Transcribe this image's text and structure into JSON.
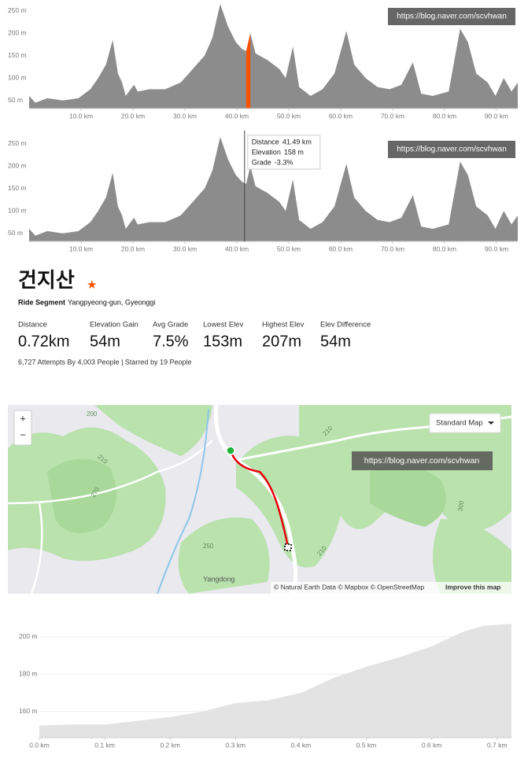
{
  "chart_data": [
    {
      "type": "area",
      "color": "#8c8c8c",
      "x": [
        0,
        1.2,
        3.5,
        6.5,
        9.5,
        11.8,
        13.3,
        14.8,
        16.1,
        17.1,
        17.9,
        18.6,
        20.2,
        20.9,
        23.2,
        26.2,
        29.2,
        31.5,
        33.8,
        35.3,
        36.8,
        38.3,
        39.8,
        41.0,
        41.8,
        42.6,
        43.6,
        45.9,
        48.2,
        49.4,
        50.8,
        52.0,
        54.2,
        56.5,
        58.8,
        61.1,
        62.6,
        64.8,
        67.1,
        69.4,
        71.7,
        73.9,
        75.5,
        77.7,
        80.8,
        83.0,
        84.5,
        86.1,
        88.3,
        89.8,
        91.4,
        92.9,
        94.1
      ],
      "values": [
        60,
        45,
        55,
        50,
        55,
        75,
        100,
        130,
        185,
        110,
        90,
        60,
        85,
        70,
        75,
        75,
        90,
        120,
        150,
        190,
        265,
        215,
        180,
        165,
        160,
        200,
        155,
        140,
        120,
        100,
        170,
        80,
        60,
        75,
        110,
        205,
        130,
        100,
        80,
        75,
        85,
        135,
        65,
        60,
        70,
        210,
        180,
        110,
        90,
        60,
        100,
        70,
        90
      ],
      "xlim": [
        0,
        94.1
      ],
      "ylim": [
        32,
        274
      ],
      "xticks": [
        {
          "value": 10,
          "label": "10.0 km"
        },
        {
          "value": 20,
          "label": "20.0 km"
        },
        {
          "value": 30,
          "label": "30.0 km"
        },
        {
          "value": 40,
          "label": "40.0 km"
        },
        {
          "value": 50,
          "label": "50.0 km"
        },
        {
          "value": 60,
          "label": "60.0 km"
        },
        {
          "value": 70,
          "label": "70.0 km"
        },
        {
          "value": 80,
          "label": "80.0 km"
        },
        {
          "value": 90,
          "label": "90.0 km"
        }
      ],
      "yticks": [
        {
          "value": 50,
          "label": "50 m"
        },
        {
          "value": 100,
          "label": "100 m"
        },
        {
          "value": 150,
          "label": "150 m"
        },
        {
          "value": 200,
          "label": "200 m"
        },
        {
          "value": 250,
          "label": "250 m"
        }
      ],
      "highlight": [
        41.8,
        42.6
      ],
      "highlight_color": "#fc5200",
      "watermark": "https://blog.naver.com/scvhwan"
    },
    {
      "type": "area",
      "color": "#8c8c8c",
      "x": [
        0,
        1.2,
        3.5,
        6.5,
        9.5,
        11.8,
        13.3,
        14.8,
        16.1,
        17.1,
        17.9,
        18.6,
        20.2,
        20.9,
        23.2,
        26.2,
        29.2,
        31.5,
        33.8,
        35.3,
        36.8,
        38.3,
        39.8,
        41.0,
        41.8,
        42.6,
        43.6,
        45.9,
        48.2,
        49.4,
        50.8,
        52.0,
        54.2,
        56.5,
        58.8,
        61.1,
        62.6,
        64.8,
        67.1,
        69.4,
        71.7,
        73.9,
        75.5,
        77.7,
        80.8,
        83.0,
        84.5,
        86.1,
        88.3,
        89.8,
        91.4,
        92.9,
        94.1
      ],
      "values": [
        60,
        45,
        55,
        50,
        55,
        75,
        100,
        130,
        185,
        110,
        90,
        60,
        85,
        70,
        75,
        75,
        90,
        120,
        150,
        190,
        265,
        215,
        180,
        165,
        160,
        200,
        155,
        140,
        120,
        100,
        170,
        80,
        60,
        75,
        110,
        205,
        130,
        100,
        80,
        75,
        85,
        135,
        65,
        60,
        70,
        210,
        180,
        110,
        90,
        60,
        100,
        70,
        90
      ],
      "xlim": [
        0,
        94.1
      ],
      "ylim": [
        32,
        274
      ],
      "xticks": [
        {
          "value": 10,
          "label": "10.0 km"
        },
        {
          "value": 20,
          "label": "20.0 km"
        },
        {
          "value": 30,
          "label": "30.0 km"
        },
        {
          "value": 40,
          "label": "40.0 km"
        },
        {
          "value": 50,
          "label": "50.0 km"
        },
        {
          "value": 60,
          "label": "60.0 km"
        },
        {
          "value": 70,
          "label": "70.0 km"
        },
        {
          "value": 80,
          "label": "80.0 km"
        },
        {
          "value": 90,
          "label": "90.0 km"
        }
      ],
      "yticks": [
        {
          "value": 50,
          "label": "50 m"
        },
        {
          "value": 100,
          "label": "100 m"
        },
        {
          "value": 150,
          "label": "150 m"
        },
        {
          "value": 200,
          "label": "200 m"
        },
        {
          "value": 250,
          "label": "250 m"
        }
      ],
      "hover": {
        "x": 41.49,
        "rows": [
          [
            "Distance",
            "41.49 km"
          ],
          [
            "Elevation",
            "158 m"
          ],
          [
            "Grade",
            "-3.3%"
          ]
        ]
      },
      "watermark": "https://blog.naver.com/scvhwan"
    },
    {
      "type": "area",
      "color": "#e3e3e3",
      "grid": true,
      "x": [
        0,
        0.05,
        0.1,
        0.15,
        0.2,
        0.25,
        0.3,
        0.35,
        0.4,
        0.45,
        0.5,
        0.55,
        0.6,
        0.65,
        0.68,
        0.722
      ],
      "values": [
        152.5,
        153,
        153,
        155,
        157,
        160,
        164.5,
        166,
        170,
        178,
        184,
        189,
        195,
        203,
        206,
        207
      ],
      "xlim": [
        0,
        0.722
      ],
      "ylim": [
        146,
        210.5
      ],
      "xticks": [
        {
          "value": 0,
          "label": "0.0 km"
        },
        {
          "value": 0.1,
          "label": "0.1 km"
        },
        {
          "value": 0.2,
          "label": "0.2 km"
        },
        {
          "value": 0.3,
          "label": "0.3 km"
        },
        {
          "value": 0.4,
          "label": "0.4 km"
        },
        {
          "value": 0.5,
          "label": "0.5 km"
        },
        {
          "value": 0.6,
          "label": "0.6 km"
        },
        {
          "value": 0.7,
          "label": "0.7 km"
        }
      ],
      "yticks": [
        {
          "value": 160,
          "label": "160 m"
        },
        {
          "value": 180,
          "label": "180 m"
        },
        {
          "value": 200,
          "label": "200 m"
        }
      ]
    }
  ],
  "segment": {
    "title": "건지산",
    "star": "★",
    "kind": "Ride Segment",
    "location": "Yangpyeong-gun, Gyeonggi",
    "stats": [
      [
        "Distance",
        "0.72km"
      ],
      [
        "Elevation Gain",
        "54m"
      ],
      [
        "Avg Grade",
        "7.5%"
      ],
      [
        "Lowest Elev",
        "153m"
      ],
      [
        "Highest Elev",
        "207m"
      ],
      [
        "Elev Difference",
        "54m"
      ]
    ],
    "footer": "6,727 Attempts By 4,003 People | Starred by 19 People"
  },
  "map": {
    "zoom_in": "+",
    "zoom_out": "−",
    "style_button": "Standard Map",
    "watermark": "https://blog.naver.com/scvhwan",
    "place": "Yangdong",
    "contours": [
      "200",
      "210",
      "270",
      "250",
      "210",
      "210",
      "300"
    ],
    "attribution": "© Natural Earth Data © Mapbox © OpenStreetMap",
    "improve": "Improve this map"
  }
}
